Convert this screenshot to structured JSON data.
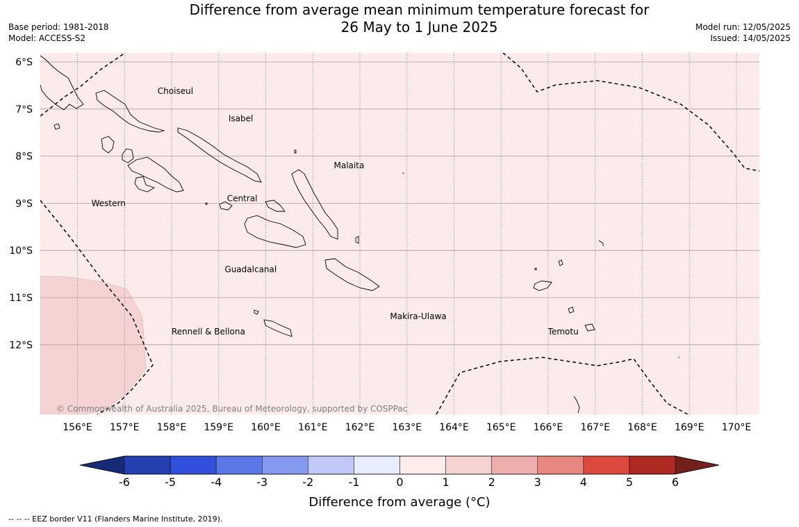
{
  "title_line1": "Difference from average mean minimum temperature forecast for",
  "title_line2": "26 May to 1 June 2025",
  "base_period": "Base period: 1981-2018",
  "model": "Model: ACCESS-S2",
  "model_run": "Model run: 12/05/2025",
  "issued": "Issued: 14/05/2025",
  "copyright": "© Commonwealth of Australia 2025, Bureau of Meteorology, supported by COSPPac",
  "footnote": "--  --  -- EEZ border V11 (Flanders Marine Institute, 2019).",
  "colorbar_label": "Difference from average (°C)",
  "lat_labels": [
    "6°S",
    "7°S",
    "8°S",
    "9°S",
    "10°S",
    "11°S",
    "12°S"
  ],
  "lon_labels": [
    "156°E",
    "157°E",
    "158°E",
    "159°E",
    "160°E",
    "161°E",
    "162°E",
    "163°E",
    "164°E",
    "165°E",
    "166°E",
    "167°E",
    "168°E",
    "169°E",
    "170°E"
  ],
  "places": [
    {
      "name": "Choiseul",
      "lon": 158.08,
      "lat": -6.62
    },
    {
      "name": "Isabel",
      "lon": 159.47,
      "lat": -7.2
    },
    {
      "name": "Malaita",
      "lon": 161.77,
      "lat": -8.2
    },
    {
      "name": "Western",
      "lon": 156.66,
      "lat": -9.0
    },
    {
      "name": "Central",
      "lon": 159.5,
      "lat": -8.9
    },
    {
      "name": "Guadalcanal",
      "lon": 159.68,
      "lat": -10.4
    },
    {
      "name": "Makira-Ulawa",
      "lon": 163.24,
      "lat": -11.4
    },
    {
      "name": "Rennell & Bellona",
      "lon": 158.78,
      "lat": -11.72
    },
    {
      "name": "Temotu",
      "lon": 166.32,
      "lat": -11.72
    }
  ],
  "colorbar": {
    "ticks": [
      "-6",
      "-5",
      "-4",
      "-3",
      "-2",
      "-1",
      "0",
      "1",
      "2",
      "3",
      "4",
      "5",
      "6"
    ],
    "colors": [
      "#2540b0",
      "#3150dc",
      "#5c77e6",
      "#8599ee",
      "#c0c8f5",
      "#e9ecfc",
      "#fdecec",
      "#f5d3d3",
      "#efaeae",
      "#e8877f",
      "#dc4a3e",
      "#ad2a23"
    ],
    "under_color": "#172a75",
    "over_color": "#741f1c"
  },
  "fields": {
    "background_color": "#fcebeb",
    "warm_patch_color": "#f5d3d3",
    "background_anomaly_range": [
      0,
      1
    ],
    "warm_patch_anomaly_range": [
      1,
      2
    ]
  }
}
